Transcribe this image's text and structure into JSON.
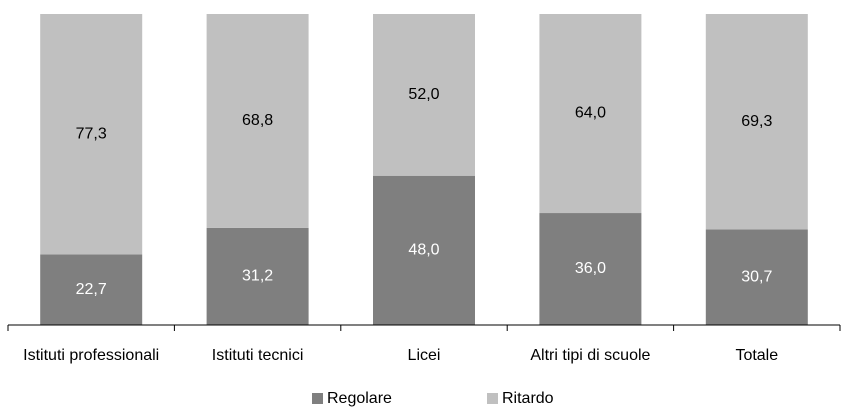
{
  "chart_data": {
    "type": "bar",
    "stacked": true,
    "categories": [
      "Istituti professionali",
      "Istituti tecnici",
      "Licei",
      "Altri tipi di scuole",
      "Totale"
    ],
    "series": [
      {
        "name": "Regolare",
        "color": "#7f7f7f",
        "label_color": "#ffffff",
        "values": [
          22.7,
          31.2,
          48.0,
          36.0,
          30.7
        ],
        "value_labels": [
          "22,7",
          "31,2",
          "48,0",
          "36,0",
          "30,7"
        ]
      },
      {
        "name": "Ritardo",
        "color": "#c0c0c0",
        "label_color": "#000000",
        "values": [
          77.3,
          68.8,
          52.0,
          64.0,
          69.3
        ],
        "value_labels": [
          "77,3",
          "68,8",
          "52,0",
          "64,0",
          "69,3"
        ]
      }
    ],
    "title": "",
    "xlabel": "",
    "ylabel": "",
    "ylim": [
      0,
      100
    ],
    "grid": false,
    "legend_position": "bottom",
    "axis_color": "#000000"
  }
}
